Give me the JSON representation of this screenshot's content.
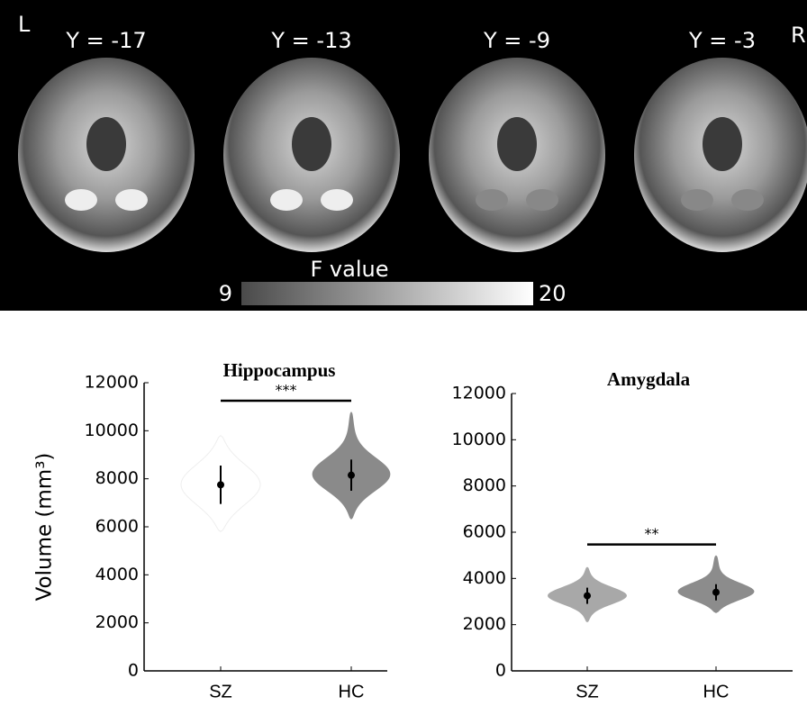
{
  "brain_panel": {
    "left_label": "L",
    "right_label": "R",
    "slices": [
      "Y = -17",
      "Y = -13",
      "Y = -9",
      "Y = -3"
    ],
    "colorbar": {
      "label": "F value",
      "min_label": "9",
      "max_label": "20"
    }
  },
  "chart_data": [
    {
      "type": "violin",
      "title": "Hippocampus",
      "ylabel": "Volume (mm³)",
      "categories": [
        "SZ",
        "HC"
      ],
      "colors": [
        "#ffffff",
        "#8a8a8a"
      ],
      "mean": [
        7750,
        8150
      ],
      "sd": [
        800,
        650
      ],
      "min": [
        5800,
        6300
      ],
      "max": [
        9800,
        10800
      ],
      "significance": "***",
      "ylim": [
        0,
        12000
      ],
      "yticks": [
        0,
        2000,
        4000,
        6000,
        8000,
        10000,
        12000
      ]
    },
    {
      "type": "violin",
      "title": "Amygdala",
      "categories": [
        "SZ",
        "HC"
      ],
      "colors": [
        "#a8a8a8",
        "#8c8c8c"
      ],
      "mean": [
        3250,
        3400
      ],
      "sd": [
        350,
        350
      ],
      "min": [
        2100,
        2500
      ],
      "max": [
        4500,
        5000
      ],
      "significance": "**",
      "ylim": [
        0,
        12000
      ],
      "yticks": [
        0,
        2000,
        4000,
        6000,
        8000,
        10000,
        12000
      ]
    }
  ]
}
